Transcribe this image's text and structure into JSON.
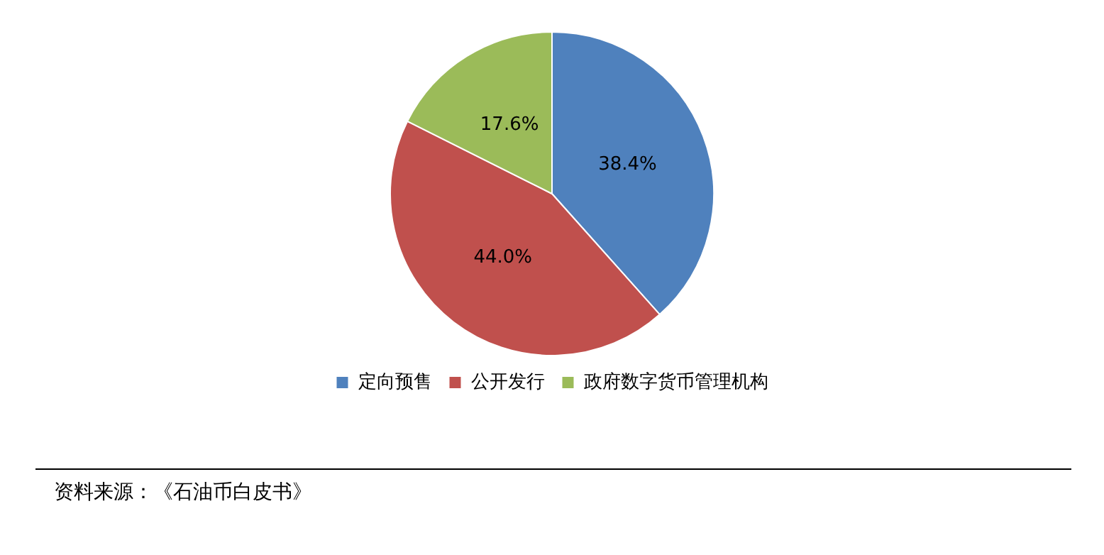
{
  "chart_data": {
    "type": "pie",
    "categories": [
      "定向预售",
      "公开发行",
      "政府数字货币管理机构"
    ],
    "values": [
      38.4,
      44.0,
      17.6
    ],
    "colors": [
      "#4f81bd",
      "#c0504d",
      "#9bbb59"
    ],
    "value_labels": [
      "38.4%",
      "44.0%",
      "17.6%"
    ],
    "legend": "bottom",
    "annotations": [
      "资料来源：《石油币白皮书》"
    ]
  }
}
